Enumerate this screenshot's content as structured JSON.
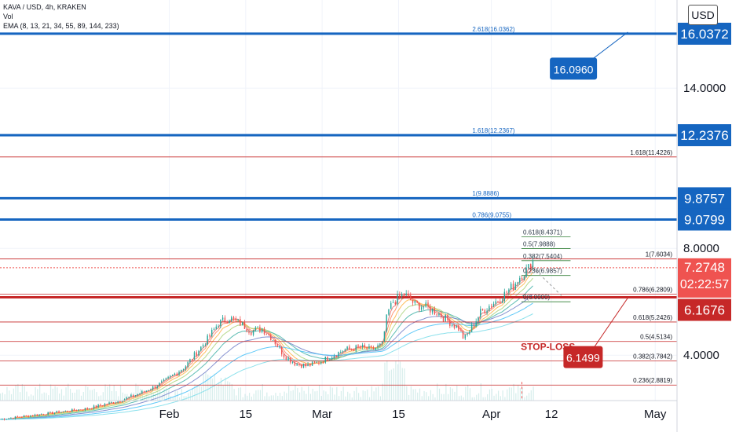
{
  "header": {
    "symbol_line": "KAVA / USD, 4h, KRAKEN",
    "vol_label": "Vol",
    "ema_label": "EMA (8, 13, 21, 34, 55, 89, 144, 233)"
  },
  "currency": "USD",
  "colors": {
    "blue": "#1565c0",
    "red": "#c62828",
    "price_badge": "#ef5350",
    "green_fib": "#2e7d32"
  },
  "chart_data": {
    "type": "line",
    "ylim": [
      2.3,
      17.3
    ],
    "xlim_days": [
      0,
      124
    ],
    "y_ticks": [
      "4.0000",
      "8.0000",
      "14.0000"
    ],
    "x_ticks": [
      {
        "label": "Feb",
        "day": 31
      },
      {
        "label": "15",
        "day": 45
      },
      {
        "label": "Mar",
        "day": 59
      },
      {
        "label": "15",
        "day": 73
      },
      {
        "label": "Apr",
        "day": 90
      },
      {
        "label": "12",
        "day": 101
      },
      {
        "label": "May",
        "day": 120
      }
    ],
    "blue_levels": [
      {
        "value": 16.0372,
        "label": "16.0372"
      },
      {
        "value": 12.2376,
        "label": "12.2376"
      },
      {
        "value": 9.8757,
        "label": "9.8757"
      },
      {
        "value": 9.0799,
        "label": "9.0799"
      }
    ],
    "red_levels": [
      {
        "value": 6.1676,
        "label": "6.1676"
      }
    ],
    "current_price": {
      "value": 7.2748,
      "label": "7.2748",
      "timer": "02:22:57"
    },
    "fib_blue": [
      {
        "label": "2.618(16.0362)",
        "value": 16.0362
      },
      {
        "label": "1.618(12.2367)",
        "value": 12.2367
      },
      {
        "label": "1(9.8886)",
        "value": 9.8886
      },
      {
        "label": "0.786(9.0755)",
        "value": 9.0755
      }
    ],
    "fib_green": [
      {
        "label": "0.618(8.4371)",
        "value": 8.4371
      },
      {
        "label": "0.5(7.9888)",
        "value": 7.9888
      },
      {
        "label": "0.382(7.5404)",
        "value": 7.5404
      },
      {
        "label": "0.236(6.9857)",
        "value": 6.9857
      },
      {
        "label": "0(6.0000)",
        "value": 6.0
      }
    ],
    "fib_red": [
      {
        "label": "1.618(11.4226)",
        "value": 11.4226
      },
      {
        "label": "1(7.6034)",
        "value": 7.6034
      },
      {
        "label": "0.786(6.2809)",
        "value": 6.2809
      },
      {
        "label": "0.618(5.2426)",
        "value": 5.2426
      },
      {
        "label": "0.5(4.5134)",
        "value": 4.5134
      },
      {
        "label": "0.382(3.7842)",
        "value": 3.7842
      },
      {
        "label": "0.236(2.8819)",
        "value": 2.8819
      }
    ],
    "annotations": {
      "target_label": "16.0960",
      "target_value": 16.096,
      "stop_label": "6.1499",
      "stop_value": 6.1499,
      "stop_loss_text": "STOP-LOSS"
    },
    "price_series": {
      "x_days": [
        0,
        8,
        16,
        22,
        26,
        30,
        34,
        38,
        40,
        42,
        44,
        46,
        48,
        50,
        52,
        54,
        56,
        58,
        60,
        63,
        66,
        68,
        70,
        71,
        72,
        74,
        76,
        78,
        80,
        82,
        84,
        85,
        86,
        88,
        90,
        92,
        94,
        95,
        96,
        97,
        97.5,
        98
      ],
      "y_values": [
        1.6,
        1.8,
        2.0,
        2.3,
        2.6,
        3.0,
        3.6,
        4.6,
        5.2,
        5.4,
        5.2,
        4.9,
        5.0,
        4.6,
        4.0,
        3.7,
        3.6,
        3.7,
        3.9,
        4.2,
        4.3,
        4.2,
        4.4,
        5.6,
        6.0,
        6.3,
        5.9,
        5.8,
        5.6,
        5.3,
        5.0,
        4.6,
        4.9,
        5.6,
        5.9,
        6.2,
        6.6,
        6.9,
        7.1,
        7.3,
        7.6,
        7.27
      ]
    }
  }
}
